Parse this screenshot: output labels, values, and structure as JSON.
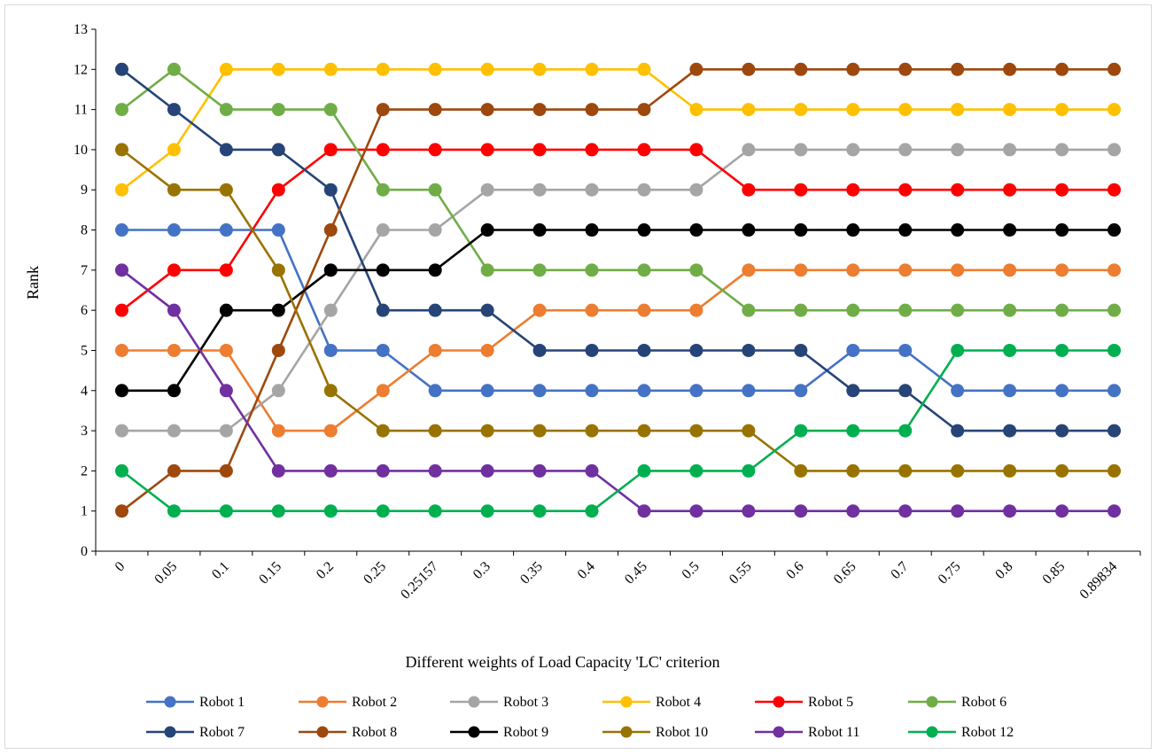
{
  "chart_data": {
    "type": "line",
    "title": "",
    "xlabel": "Different weights of Load Capacity 'LC' criterion",
    "ylabel": "Rank",
    "ylim": [
      0,
      13
    ],
    "yticks": [
      "0",
      "1",
      "2",
      "3",
      "4",
      "5",
      "6",
      "7",
      "8",
      "9",
      "10",
      "11",
      "12",
      "13"
    ],
    "grid": false,
    "legend_position": "bottom",
    "categories": [
      "0",
      "0.05",
      "0.1",
      "0.15",
      "0.2",
      "0.25",
      "0.25157",
      "0.3",
      "0.35",
      "0.4",
      "0.45",
      "0.5",
      "0.55",
      "0.6",
      "0.65",
      "0.7",
      "0.75",
      "0.8",
      "0.85",
      "0.89834"
    ],
    "series": [
      {
        "name": "Robot 1",
        "color": "#4472c4",
        "values": [
          8,
          8,
          8,
          8,
          5,
          5,
          4,
          4,
          4,
          4,
          4,
          4,
          4,
          4,
          5,
          5,
          4,
          4,
          4,
          4
        ]
      },
      {
        "name": "Robot 2",
        "color": "#ed7d31",
        "values": [
          5,
          5,
          5,
          3,
          3,
          4,
          5,
          5,
          6,
          6,
          6,
          6,
          7,
          7,
          7,
          7,
          7,
          7,
          7,
          7
        ]
      },
      {
        "name": "Robot 3",
        "color": "#a5a5a5",
        "values": [
          3,
          3,
          3,
          4,
          6,
          8,
          8,
          9,
          9,
          9,
          9,
          9,
          10,
          10,
          10,
          10,
          10,
          10,
          10,
          10
        ]
      },
      {
        "name": "Robot 4",
        "color": "#ffc000",
        "values": [
          9,
          10,
          12,
          12,
          12,
          12,
          12,
          12,
          12,
          12,
          12,
          11,
          11,
          11,
          11,
          11,
          11,
          11,
          11,
          11
        ]
      },
      {
        "name": "Robot 5",
        "color": "#ff0000",
        "values": [
          6,
          7,
          7,
          9,
          10,
          10,
          10,
          10,
          10,
          10,
          10,
          10,
          9,
          9,
          9,
          9,
          9,
          9,
          9,
          9
        ]
      },
      {
        "name": "Robot 6",
        "color": "#70ad47",
        "values": [
          11,
          12,
          11,
          11,
          11,
          9,
          9,
          7,
          7,
          7,
          7,
          7,
          6,
          6,
          6,
          6,
          6,
          6,
          6,
          6
        ]
      },
      {
        "name": "Robot 7",
        "color": "#264478",
        "values": [
          12,
          11,
          10,
          10,
          9,
          6,
          6,
          6,
          5,
          5,
          5,
          5,
          5,
          5,
          4,
          4,
          3,
          3,
          3,
          3
        ]
      },
      {
        "name": "Robot 8",
        "color": "#9e480e",
        "values": [
          1,
          2,
          2,
          5,
          8,
          11,
          11,
          11,
          11,
          11,
          11,
          12,
          12,
          12,
          12,
          12,
          12,
          12,
          12,
          12
        ]
      },
      {
        "name": "Robot 9",
        "color": "#000000",
        "values": [
          4,
          4,
          6,
          6,
          7,
          7,
          7,
          8,
          8,
          8,
          8,
          8,
          8,
          8,
          8,
          8,
          8,
          8,
          8,
          8
        ]
      },
      {
        "name": "Robot 10",
        "color": "#997300",
        "values": [
          10,
          9,
          9,
          7,
          4,
          3,
          3,
          3,
          3,
          3,
          3,
          3,
          3,
          2,
          2,
          2,
          2,
          2,
          2,
          2
        ]
      },
      {
        "name": "Robot 11",
        "color": "#7030a0",
        "values": [
          7,
          6,
          4,
          2,
          2,
          2,
          2,
          2,
          2,
          2,
          1,
          1,
          1,
          1,
          1,
          1,
          1,
          1,
          1,
          1
        ]
      },
      {
        "name": "Robot 12",
        "color": "#00b050",
        "values": [
          2,
          1,
          1,
          1,
          1,
          1,
          1,
          1,
          1,
          1,
          2,
          2,
          2,
          3,
          3,
          3,
          5,
          5,
          5,
          5
        ]
      }
    ]
  }
}
